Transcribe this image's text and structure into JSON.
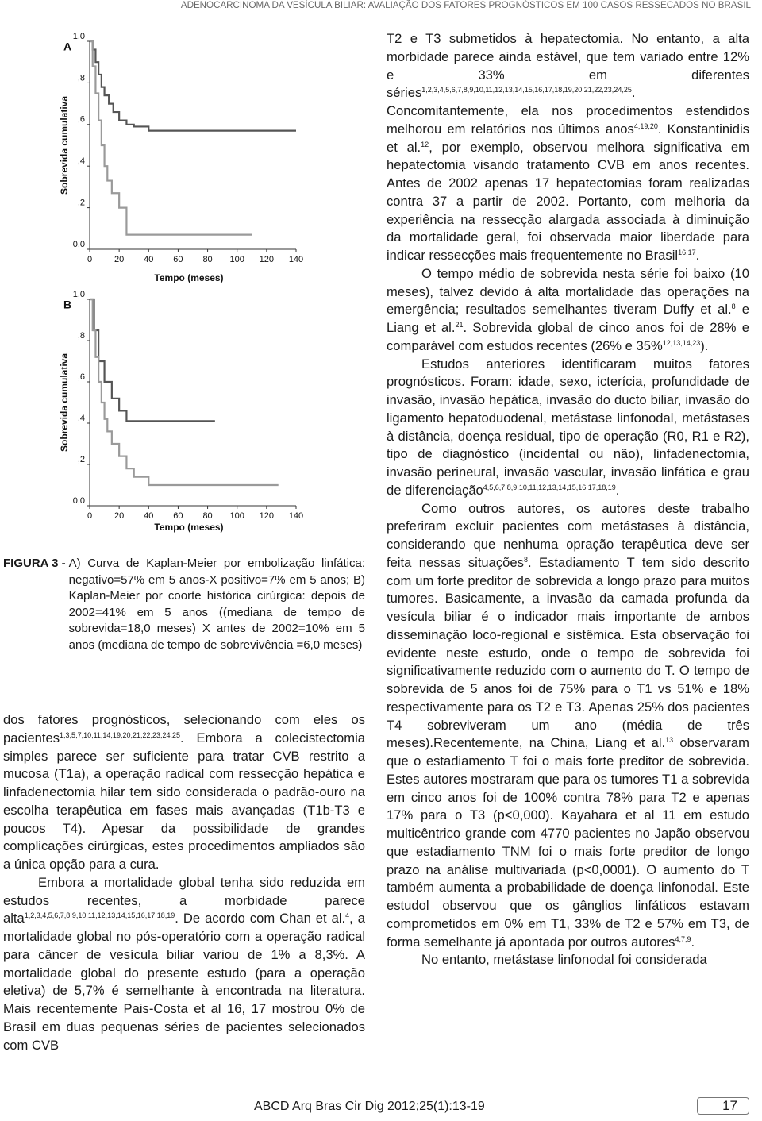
{
  "header": {
    "running_title": "ADENOCARCINOMA DA VESÍCULA BILIAR: AVALIAÇÃO DOS FATORES PROGNÓSTICOS EM 100 CASOS RESSECADOS NO BRASIL"
  },
  "figure": {
    "panels": [
      {
        "type": "line",
        "letter": "A",
        "ylabel": "Sobrevida cumulativa",
        "xlabel": "Tempo (meses)",
        "xlim": [
          0,
          140
        ],
        "ylim": [
          0,
          1
        ],
        "xticks": [
          0,
          20,
          40,
          60,
          80,
          100,
          120,
          140
        ],
        "yticks": [
          {
            "value": 0,
            "label": "0,0"
          },
          {
            "value": 0.2,
            "label": ",2"
          },
          {
            "value": 0.4,
            "label": ",4"
          },
          {
            "value": 0.6,
            "label": ",6"
          },
          {
            "value": 0.8,
            "label": ",8"
          },
          {
            "value": 1,
            "label": "1,0"
          }
        ],
        "series": [
          {
            "color": "#555555",
            "x": [
              0,
              2,
              4,
              6,
              8,
              10,
              13,
              16,
              20,
              25,
              30,
              40,
              140
            ],
            "values": [
              1,
              0.96,
              0.9,
              0.84,
              0.78,
              0.74,
              0.7,
              0.66,
              0.62,
              0.6,
              0.59,
              0.57,
              0.57
            ]
          },
          {
            "color": "#9a9a9a",
            "x": [
              0,
              2,
              4,
              6,
              8,
              10,
              12,
              15,
              20,
              25,
              110
            ],
            "values": [
              1,
              0.88,
              0.75,
              0.62,
              0.5,
              0.4,
              0.33,
              0.27,
              0.2,
              0.07,
              0.07
            ]
          }
        ]
      },
      {
        "type": "line",
        "letter": "B",
        "ylabel": "Sobrevida cumulativa",
        "xlabel": "Tempo (meses)",
        "xlim": [
          0,
          140
        ],
        "ylim": [
          0,
          1
        ],
        "xticks": [
          0,
          20,
          40,
          60,
          80,
          100,
          120,
          140
        ],
        "yticks": [
          {
            "value": 0,
            "label": "0,0"
          },
          {
            "value": 0.2,
            "label": ",2"
          },
          {
            "value": 0.4,
            "label": ",4"
          },
          {
            "value": 0.6,
            "label": ",6"
          },
          {
            "value": 0.8,
            "label": ",8"
          },
          {
            "value": 1,
            "label": "1,0"
          }
        ],
        "series": [
          {
            "color": "#555555",
            "x": [
              0,
              3,
              6,
              10,
              15,
              20,
              25,
              85
            ],
            "values": [
              1,
              0.85,
              0.7,
              0.6,
              0.52,
              0.46,
              0.41,
              0.41
            ]
          },
          {
            "color": "#9a9a9a",
            "x": [
              0,
              2,
              4,
              6,
              8,
              10,
              12,
              15,
              20,
              25,
              30,
              40,
              128
            ],
            "values": [
              1,
              0.85,
              0.72,
              0.6,
              0.5,
              0.42,
              0.36,
              0.3,
              0.24,
              0.18,
              0.14,
              0.1,
              0.1
            ]
          }
        ]
      }
    ],
    "caption": {
      "label": "FIGURA 3 -",
      "text": "A) Curva de Kaplan-Meier por embolização linfática: negativo=57% em 5 anos-X positivo=7% em 5 anos; B) Kaplan-Meier por coorte histórica cirúrgica: depois de 2002=41% em 5 anos ((mediana de tempo de sobrevida=18,0 meses) X antes de 2002=10% em 5 anos (mediana de tempo de sobrevivência =6,0 meses)"
    }
  },
  "left_column": {
    "paragraphs": [
      {
        "indent": false,
        "segments": [
          "dos fatores prognósticos, selecionando com eles os pacientes",
          {
            "sup": "1,3,5,7,10,11,14,19,20,21,22,23,24,25"
          },
          ".      Embora a colecistectomia simples parece ser suficiente para tratar CVB restrito a mucosa (T1a), a operação radical com ressecção hepática e linfadenectomia hilar tem sido considerada o padrão-ouro na escolha terapêutica em fases mais avançadas (T1b-T3 e poucos T4). Apesar da possibilidade de grandes complicações cirúrgicas, estes procedimentos ampliados são a única opção para a cura."
        ]
      },
      {
        "indent": true,
        "segments": [
          "Embora a mortalidade global tenha sido reduzida em estudos recentes, a morbidade parece alta",
          {
            "sup": "1,2,3,4,5,6,7,8,9,10,11,12,13,14,15,16,17,18,19"
          },
          ". De acordo com Chan et al.",
          {
            "sup": "4"
          },
          ", a mortalidade global no pós-operatório com a operação radical para câncer de vesícula biliar variou de 1% a 8,3%. A mortalidade global do presente estudo (para a operação eletiva) de 5,7% é semelhante à encontrada na literatura. Mais recentemente Pais-Costa et al 16, 17 mostrou 0% de Brasil em duas pequenas séries de pacientes selecionados com CVB"
        ]
      }
    ]
  },
  "right_column": {
    "paragraphs": [
      {
        "indent": false,
        "segments": [
          "T2 e T3 submetidos à hepatectomia. No entanto, a alta morbidade parece ainda estável, que tem variado entre 12% e 33% em diferentes séries",
          {
            "sup": "1,2,3,4,5,6,7,8,9,10,11,12,13,14,15,16,17,18,19,20,21,22,23,24,25"
          },
          ". Concomitantemente, ela nos procedimentos estendidos melhorou em relatórios nos últimos anos",
          {
            "sup": "4,19,20"
          },
          ". Konstantinidis et al.",
          {
            "sup": "12"
          },
          ", por exemplo, observou melhora significativa em hepatectomia visando tratamento CVB em anos recentes. Antes de 2002 apenas 17 hepatectomias foram realizadas contra 37 a partir de 2002. Portanto, com melhoria da experiência na ressecção alargada associada à diminuição da mortalidade geral, foi observada maior liberdade para indicar ressecções mais frequentemente no Brasil",
          {
            "sup": "16,17"
          },
          "."
        ]
      },
      {
        "indent": true,
        "segments": [
          "O tempo médio de sobrevida nesta série foi baixo (10 meses), talvez devido à alta mortalidade das operações na emergência; resultados semelhantes tiveram Duffy et al.",
          {
            "sup": "8"
          },
          " e Liang et al.",
          {
            "sup": "21"
          },
          ". Sobrevida global de cinco anos foi de 28% e comparável com estudos recentes (26% e 35%",
          {
            "sup": "12,13,14,23"
          },
          ")."
        ]
      },
      {
        "indent": true,
        "segments": [
          "Estudos anteriores identificaram muitos fatores prognósticos. Foram: idade, sexo, icterícia, profundidade de invasão, invasão hepática, invasão do ducto biliar, invasão do ligamento hepatoduodenal, metástase linfonodal, metástases à distância, doença residual, tipo de operação (R0, R1 e R2), tipo de diagnóstico (incidental ou não), linfadenectomia, invasão perineural, invasão vascular, invasão linfática e grau de diferenciação",
          {
            "sup": "4,5,6,7,8,9,10,11,12,13,14,15,16,17,18,19"
          },
          "."
        ]
      },
      {
        "indent": true,
        "segments": [
          "Como outros autores, os autores deste trabalho preferiram excluir pacientes com metástases à distância, considerando que nenhuma opração terapêutica deve ser feita nessas situações",
          {
            "sup": "8"
          },
          ". Estadiamento T tem sido descrito com um forte preditor de sobrevida a longo prazo para muitos tumores. Basicamente, a invasão da camada profunda da vesícula biliar é o indicador mais importante de ambos disseminação loco-regional e sistêmica. Esta observação foi evidente neste estudo, onde o tempo de sobrevida foi significativamente reduzido com o aumento do T. O tempo de sobrevida de 5 anos foi de 75% para o T1 vs 51% e 18% respectivamente para os T2 e T3. Apenas 25% dos pacientes T4 sobreviveram um ano (média de três meses).Recentemente, na China, Liang et al.",
          {
            "sup": "13"
          },
          " observaram que o estadiamento T foi o mais forte preditor de sobrevida. Estes autores mostraram que para os tumores T1 a sobrevida em cinco anos foi de 100% contra 78% para T2 e apenas 17% para o T3 (p<0,000).  Kayahara et al 11 em estudo multicêntrico grande com 4770 pacientes no Japão observou que estadiamento TNM foi o mais forte preditor de longo prazo na análise multivariada (p<0,0001). O aumento do T também aumenta a probabilidade de doença linfonodal. Este estudol observou que os gânglios linfáticos estavam comprometidos em 0% em T1, 33% de T2 e 57% em T3, de forma semelhante já apontada por outros autores",
          {
            "sup": "4,7,9"
          },
          "."
        ]
      },
      {
        "indent": true,
        "segments": [
          "No entanto, metástase linfonodal foi considerada"
        ]
      }
    ]
  },
  "footer": {
    "citation": "ABCD Arq Bras Cir Dig 2012;25(1):13-19",
    "page_number": "17"
  }
}
